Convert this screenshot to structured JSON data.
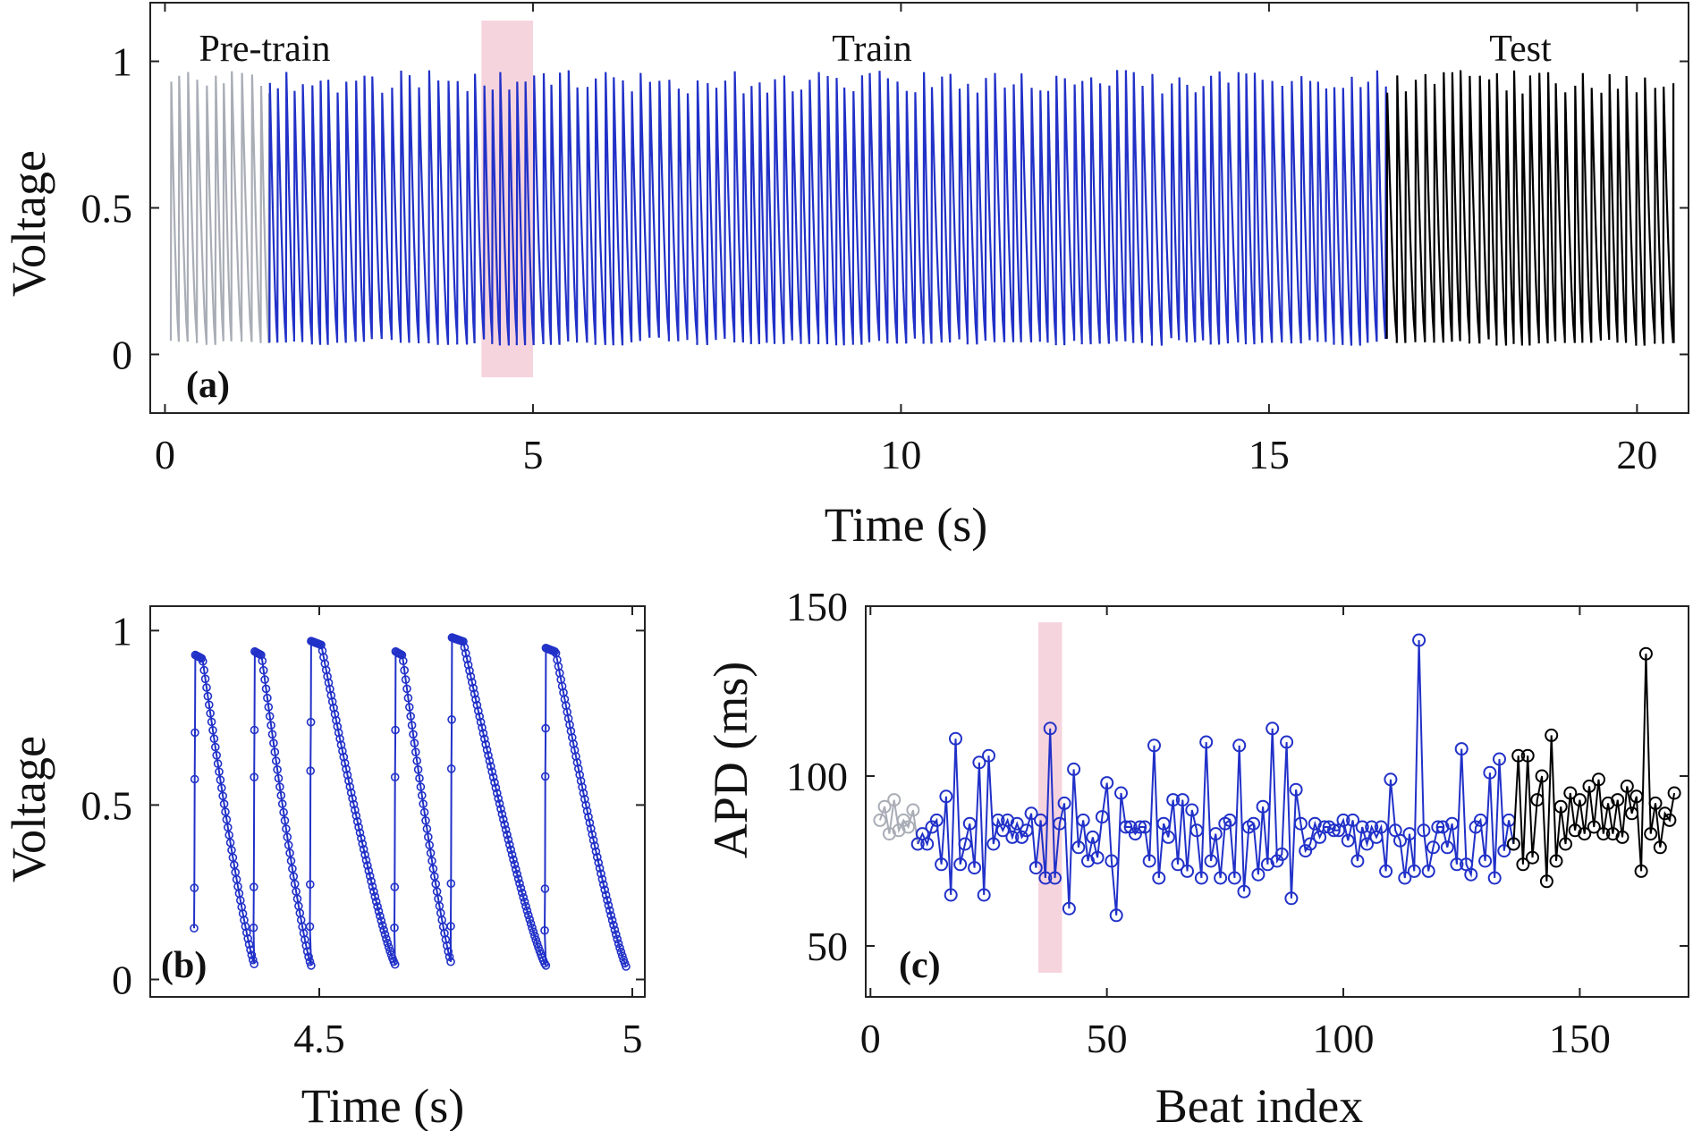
{
  "chart_data": [
    {
      "panel": "(a)",
      "type": "line",
      "xlabel": "Time (s)",
      "ylabel": "Voltage",
      "xlim": [
        -0.2,
        20.7
      ],
      "ylim": [
        -0.2,
        1.2
      ],
      "xticks": [
        "0",
        "5",
        "10",
        "15",
        "20"
      ],
      "xtick_values": [
        0,
        5,
        10,
        15,
        20
      ],
      "yticks": [
        "0",
        "0.5",
        "1"
      ],
      "ytick_values": [
        0,
        0.5,
        1
      ],
      "regions": [
        {
          "label": "Pre-train",
          "x_start": 0.08,
          "x_end": 1.42,
          "color": "#a9adb6"
        },
        {
          "label": "Train",
          "x_start": 1.42,
          "x_end": 16.6,
          "color": "#2131c8"
        },
        {
          "label": "Test",
          "x_start": 16.6,
          "x_end": 20.5,
          "color": "#000000"
        }
      ],
      "highlight": {
        "x_start": 4.3,
        "x_end": 5.0,
        "color": "#f4c9d6"
      },
      "beat_period_s": 0.121,
      "voltage_min": 0.03,
      "voltage_max": 0.97,
      "grid": false
    },
    {
      "panel": "(b)",
      "type": "line",
      "xlabel": "Time (s)",
      "ylabel": "Voltage",
      "xlim": [
        4.23,
        5.02
      ],
      "ylim": [
        -0.05,
        1.07
      ],
      "xticks": [
        "4.5",
        "5"
      ],
      "xtick_values": [
        4.5,
        5.0
      ],
      "yticks": [
        "0",
        "0.5",
        "1"
      ],
      "ytick_values": [
        0,
        0.5,
        1
      ],
      "color": "#2131c8",
      "marker": "circle",
      "beats": [
        {
          "upstroke": 4.3,
          "end": 4.395,
          "peak": 0.93,
          "trough": 0.04
        },
        {
          "upstroke": 4.395,
          "end": 4.485,
          "peak": 0.94,
          "trough": 0.04
        },
        {
          "upstroke": 4.485,
          "end": 4.62,
          "peak": 0.97,
          "trough": 0.04
        },
        {
          "upstroke": 4.62,
          "end": 4.71,
          "peak": 0.94,
          "trough": 0.04
        },
        {
          "upstroke": 4.71,
          "end": 4.86,
          "peak": 0.98,
          "trough": 0.04
        },
        {
          "upstroke": 4.86,
          "end": 4.99,
          "peak": 0.95,
          "trough": 0.03
        }
      ],
      "grid": false
    },
    {
      "panel": "(c)",
      "type": "line",
      "xlabel": "Beat index",
      "ylabel": "APD (ms)",
      "xlim": [
        -1,
        173
      ],
      "ylim": [
        35,
        150
      ],
      "xticks": [
        "0",
        "50",
        "100",
        "150"
      ],
      "xtick_values": [
        0,
        50,
        100,
        150
      ],
      "yticks": [
        "50",
        "100",
        "150"
      ],
      "ytick_values": [
        50,
        100,
        150
      ],
      "marker": "circle",
      "highlight": {
        "x_start": 35.5,
        "x_end": 40.5,
        "color": "#f4c9d6"
      },
      "series": [
        {
          "color": "#a9adb6",
          "x": [
            2,
            3,
            4,
            5,
            6,
            7,
            8,
            9,
            10
          ],
          "y": [
            87,
            91,
            83,
            93,
            84,
            87,
            85,
            90,
            80
          ]
        },
        {
          "color": "#2131c8",
          "x": [
            10,
            11,
            12,
            13,
            14,
            15,
            16,
            17,
            18,
            19,
            20,
            21,
            22,
            23,
            24,
            25,
            26,
            27,
            28,
            29,
            30,
            31,
            32,
            33,
            34,
            35,
            36,
            37,
            38,
            39,
            40,
            41,
            42,
            43,
            44,
            45,
            46,
            47,
            48,
            49,
            50,
            51,
            52,
            53,
            54,
            55,
            56,
            57,
            58,
            59,
            60,
            61,
            62,
            63,
            64,
            65,
            66,
            67,
            68,
            69,
            70,
            71,
            72,
            73,
            74,
            75,
            76,
            77,
            78,
            79,
            80,
            81,
            82,
            83,
            84,
            85,
            86,
            87,
            88,
            89,
            90,
            91,
            92,
            93,
            94,
            95,
            96,
            97,
            98,
            99,
            100,
            101,
            102,
            103,
            104,
            105,
            106,
            107,
            108,
            109,
            110,
            111,
            112,
            113,
            114,
            115,
            116,
            117,
            118,
            119,
            120,
            121,
            122,
            123,
            124,
            125,
            126,
            127,
            128,
            129,
            130,
            131,
            132,
            133,
            134,
            135,
            136
          ],
          "y": [
            80,
            83,
            80,
            85,
            87,
            74,
            94,
            65,
            111,
            74,
            80,
            86,
            73,
            104,
            65,
            106,
            80,
            87,
            84,
            87,
            82,
            86,
            82,
            84,
            89,
            73,
            87,
            70,
            114,
            70,
            86,
            92,
            61,
            102,
            79,
            87,
            75,
            82,
            76,
            88,
            98,
            75,
            59,
            95,
            85,
            85,
            83,
            85,
            85,
            75,
            109,
            70,
            86,
            82,
            93,
            74,
            93,
            72,
            90,
            84,
            70,
            110,
            75,
            83,
            70,
            86,
            87,
            70,
            109,
            66,
            85,
            86,
            71,
            91,
            74,
            114,
            75,
            77,
            110,
            64,
            96,
            86,
            78,
            80,
            86,
            82,
            85,
            85,
            84,
            84,
            87,
            81,
            87,
            75,
            85,
            80,
            85,
            82,
            85,
            72,
            99,
            84,
            81,
            70,
            83,
            72,
            140,
            84,
            72,
            79,
            85,
            85,
            79,
            86,
            74,
            108,
            74,
            71,
            85,
            87,
            75,
            101,
            70,
            105,
            78,
            87,
            80
          ]
        },
        {
          "color": "#000000",
          "x": [
            136,
            137,
            138,
            139,
            140,
            141,
            142,
            143,
            144,
            145,
            146,
            147,
            148,
            149,
            150,
            151,
            152,
            153,
            154,
            155,
            156,
            157,
            158,
            159,
            160,
            161,
            162,
            163,
            164,
            165,
            166,
            167,
            168,
            169,
            170
          ],
          "y": [
            80,
            106,
            74,
            106,
            76,
            93,
            100,
            69,
            112,
            75,
            91,
            80,
            95,
            84,
            93,
            83,
            97,
            85,
            99,
            83,
            92,
            83,
            93,
            82,
            97,
            89,
            94,
            72,
            136,
            83,
            92,
            79,
            89,
            87,
            95
          ]
        }
      ],
      "grid": false
    }
  ]
}
